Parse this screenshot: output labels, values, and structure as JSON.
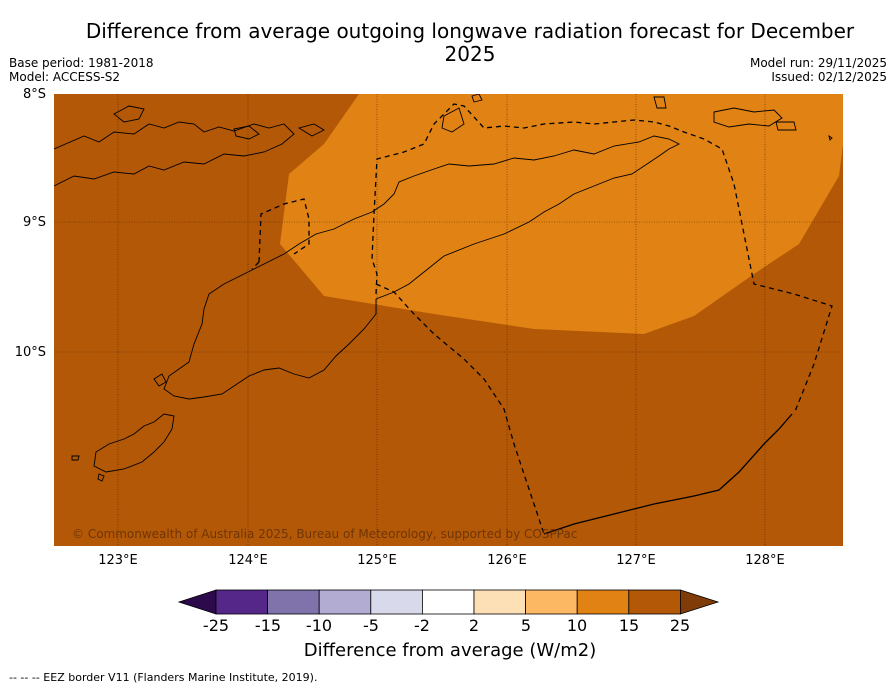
{
  "title": "Difference from average outgoing longwave radiation forecast for December 2025",
  "base_period": "Base period: 1981-2018",
  "model": "Model: ACCESS-S2",
  "model_run": "Model run: 29/11/2025",
  "issued": "Issued: 02/12/2025",
  "lat_labels": [
    "8°S",
    "9°S",
    "10°S"
  ],
  "lon_labels": [
    "123°E",
    "124°E",
    "125°E",
    "126°E",
    "127°E",
    "128°E"
  ],
  "copyright": "© Commonwealth of Australia 2025, Bureau of Meteorology, supported by COSPPac",
  "colorbar": {
    "title": "Difference from average (W/m2)",
    "ticks": [
      "-25",
      "-15",
      "-10",
      "-5",
      "-2",
      "2",
      "5",
      "10",
      "15",
      "25"
    ],
    "colors": [
      "#2d0a4b",
      "#542788",
      "#8073ac",
      "#b2abd2",
      "#d8daeb",
      "#ffffff",
      "#fee0b6",
      "#fdb863",
      "#e08214",
      "#b35806",
      "#7f3b08"
    ]
  },
  "map_colors": {
    "outer_anomaly": "#b35806",
    "inner_anomaly": "#e08214"
  },
  "footer": "--  --  -- EEZ border V11 (Flanders Marine Institute, 2019)."
}
